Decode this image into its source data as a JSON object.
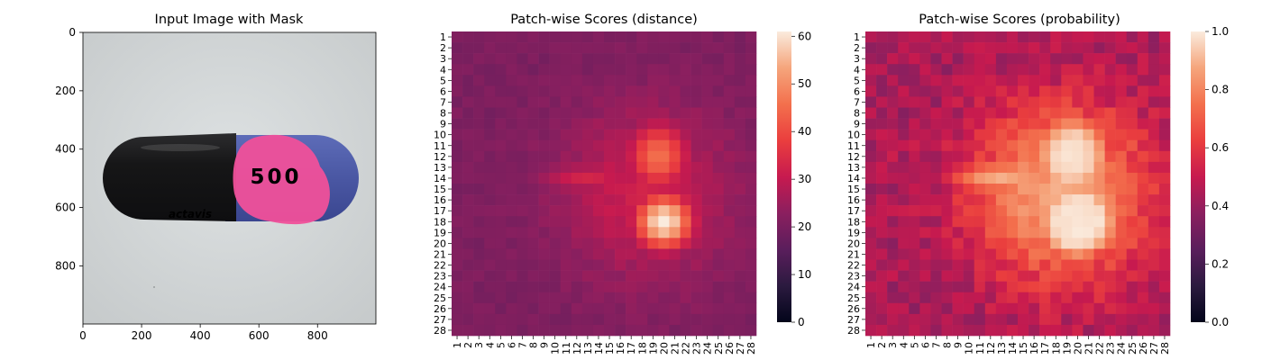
{
  "chart_data": [
    {
      "type": "image",
      "title": "Input Image with Mask",
      "x_ticks": [
        0,
        200,
        400,
        600,
        800
      ],
      "y_ticks": [
        0,
        200,
        400,
        600,
        800
      ],
      "xlim": [
        0,
        999
      ],
      "ylim": [
        999,
        0
      ],
      "capsule_text": "500",
      "capsule_brand": "actavis",
      "colors": {
        "background": "#d2d6d7",
        "capsule_black": "#1c1c1e",
        "capsule_blue": "#4c5aa6",
        "mask": "#f0509a"
      }
    },
    {
      "type": "heatmap",
      "title": "Patch-wise Scores (distance)",
      "x_tick_labels": [
        "1",
        "2",
        "3",
        "4",
        "5",
        "6",
        "7",
        "8",
        "9",
        "10",
        "11",
        "12",
        "13",
        "14",
        "15",
        "16",
        "17",
        "18",
        "19",
        "20",
        "21",
        "22",
        "23",
        "24",
        "25",
        "26",
        "27",
        "28"
      ],
      "y_tick_labels": [
        "1",
        "2",
        "3",
        "4",
        "5",
        "6",
        "7",
        "8",
        "9",
        "10",
        "11",
        "12",
        "13",
        "14",
        "15",
        "16",
        "17",
        "18",
        "19",
        "20",
        "21",
        "22",
        "23",
        "24",
        "25",
        "26",
        "27",
        "28"
      ],
      "colorbar": {
        "min": 0,
        "max": 61,
        "ticks": [
          0,
          10,
          20,
          30,
          40,
          50,
          60
        ]
      },
      "colormap": "rocket",
      "grid_size": [
        28,
        28
      ],
      "base_value": 19,
      "hotspots": [
        {
          "row": 18,
          "col": 20,
          "value": 62,
          "spread_rows": 1.8,
          "spread_cols": 1.9
        },
        {
          "row": 12,
          "col": 19.5,
          "value": 46,
          "spread_rows": 2.2,
          "spread_cols": 2.0
        },
        {
          "row": 14,
          "col": 13,
          "value": 33,
          "spread_rows": 1.0,
          "spread_cols": 3.2
        }
      ]
    },
    {
      "type": "heatmap",
      "title": "Patch-wise Scores (probability)",
      "x_tick_labels": [
        "1",
        "2",
        "3",
        "4",
        "5",
        "6",
        "7",
        "8",
        "9",
        "10",
        "11",
        "12",
        "13",
        "14",
        "15",
        "16",
        "17",
        "18",
        "19",
        "20",
        "21",
        "22",
        "23",
        "24",
        "25",
        "26",
        "27",
        "28"
      ],
      "y_tick_labels": [
        "1",
        "2",
        "3",
        "4",
        "5",
        "6",
        "7",
        "8",
        "9",
        "10",
        "11",
        "12",
        "13",
        "14",
        "15",
        "16",
        "17",
        "18",
        "19",
        "20",
        "21",
        "22",
        "23",
        "24",
        "25",
        "26",
        "27",
        "28"
      ],
      "colorbar": {
        "min": 0,
        "max": 1,
        "ticks": [
          "0.0",
          "0.2",
          "0.4",
          "0.6",
          "0.8",
          "1.0"
        ]
      },
      "colormap": "rocket",
      "grid_size": [
        28,
        28
      ],
      "derived_from": "distance",
      "threshold": 22,
      "scale": 20
    }
  ]
}
